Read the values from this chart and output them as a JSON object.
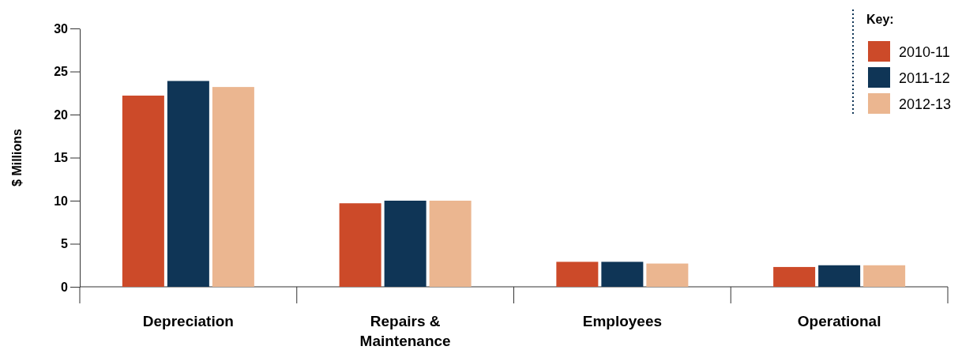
{
  "chart_data": {
    "type": "bar",
    "ylabel": "$ Millions",
    "legend_title": "Key:",
    "legend": "top right",
    "categories": [
      "Depreciation",
      "Repairs & Maintenance",
      "Employees",
      "Operational"
    ],
    "ylim": [
      0,
      30
    ],
    "yticks": [
      0,
      5,
      10,
      15,
      20,
      25,
      30
    ],
    "series": [
      {
        "name": "2010-11",
        "color": "#cc4a29",
        "values": [
          22.2,
          9.7,
          2.9,
          2.3
        ]
      },
      {
        "name": "2011-12",
        "color": "#0f3556",
        "values": [
          23.9,
          10.0,
          2.9,
          2.5
        ]
      },
      {
        "name": "2012-13",
        "color": "#ebb690",
        "values": [
          23.2,
          10.0,
          2.7,
          2.5
        ]
      }
    ]
  }
}
